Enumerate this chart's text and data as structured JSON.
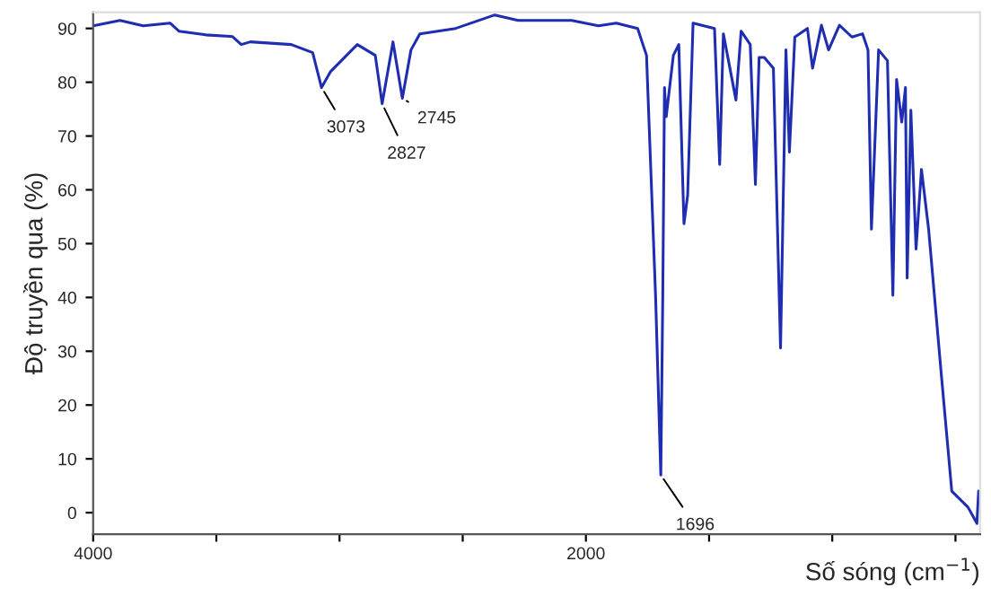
{
  "chart_data": {
    "type": "line",
    "xlabel": "Số sóng (cm$^{−1}$)",
    "ylabel": "Độ truyền qua (%)",
    "x": [
      4000,
      3891,
      3797,
      3688,
      3652,
      3543,
      3435,
      3399,
      3362,
      3196,
      3109,
      3073,
      3036,
      2928,
      2855,
      2827,
      2783,
      2745,
      2710,
      2674,
      2529,
      2370,
      2275,
      2058,
      1949,
      1877,
      1790,
      1754,
      1717,
      1696,
      1688,
      1681,
      1674,
      1645,
      1623,
      1602,
      1587,
      1565,
      1478,
      1457,
      1442,
      1391,
      1370,
      1333,
      1312,
      1297,
      1276,
      1239,
      1210,
      1188,
      1174,
      1152,
      1101,
      1080,
      1044,
      1015,
      971,
      920,
      877,
      855,
      841,
      812,
      776,
      754,
      739,
      718,
      703,
      696,
      681,
      660,
      638,
      609,
      558,
      515,
      449,
      413,
      406
    ],
    "series": [
      {
        "color": "#1f2db0",
        "values": [
          90.5,
          91.5,
          90.5,
          91,
          89.5,
          88.8,
          88.5,
          87,
          87.5,
          87,
          85.5,
          79,
          82,
          87,
          85,
          76,
          87.5,
          77,
          86,
          89,
          90,
          92.5,
          91.5,
          91.5,
          90.5,
          91,
          90,
          85,
          40,
          7,
          40,
          79,
          73.6,
          85,
          87,
          53.7,
          59,
          91,
          90,
          64.7,
          89,
          76.7,
          89.5,
          87,
          61,
          84.6,
          84.6,
          82.6,
          30.6,
          86,
          67,
          88.4,
          90,
          82.6,
          90.6,
          86,
          90.6,
          88.4,
          89,
          86,
          52.7,
          86,
          84,
          40.4,
          80.5,
          72.6,
          79,
          43.6,
          74.8,
          49,
          63.8,
          52.7,
          26,
          4,
          1,
          -2,
          4
        ]
      }
    ],
    "xlim": [
      4000,
      400
    ],
    "xticks": [
      {
        "value": 4000,
        "label": "4000"
      },
      {
        "value": 3500,
        "label": null
      },
      {
        "value": 3000,
        "label": null
      },
      {
        "value": 2500,
        "label": null
      },
      {
        "value": 2000,
        "label": "2000"
      },
      {
        "value": 1500,
        "label": null
      },
      {
        "value": 1000,
        "label": null
      },
      {
        "value": 500,
        "label": null
      }
    ],
    "ylim": [
      -4,
      93
    ],
    "yticks": [
      0,
      10,
      20,
      30,
      40,
      50,
      60,
      70,
      80,
      90
    ],
    "annotations": [
      {
        "text": "3073",
        "x": 3073,
        "y": 79
      },
      {
        "text": "2827",
        "x": 2827,
        "y": 76
      },
      {
        "text": "2745",
        "x": 2745,
        "y": 77
      },
      {
        "text": "1696",
        "x": 1696,
        "y": 7
      }
    ],
    "grid": false,
    "legend": false
  }
}
